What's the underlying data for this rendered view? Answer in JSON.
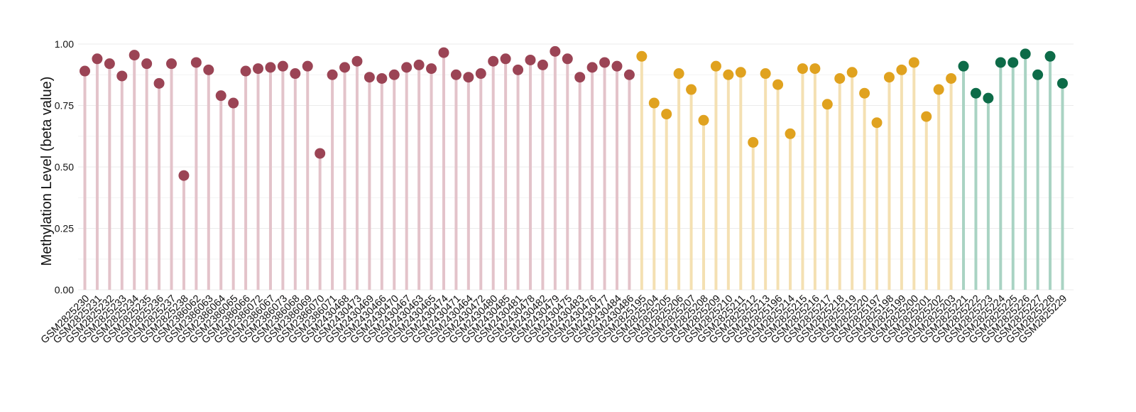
{
  "chart_data": {
    "type": "lollipop",
    "ylabel": "Methylation Level (beta value)",
    "ylim": [
      0,
      1
    ],
    "yticks": [
      "0.00",
      "0.25",
      "0.50",
      "0.75",
      "1.00"
    ],
    "grid": true,
    "legend": "none",
    "groups": [
      {
        "color": "#9b4455",
        "stem_color": "#e3c3ca",
        "start": 0,
        "end": 45
      },
      {
        "color": "#e0a21f",
        "stem_color": "#f4e0b2",
        "start": 45,
        "end": 71
      },
      {
        "color": "#0d6b48",
        "stem_color": "#a9d3c3",
        "start": 71,
        "end": 80
      }
    ],
    "categories": [
      "GSM2825230",
      "GSM2825231",
      "GSM2825232",
      "GSM2825233",
      "GSM2825234",
      "GSM2825235",
      "GSM2825236",
      "GSM2825237",
      "GSM2825238",
      "GSM2386062",
      "GSM2386063",
      "GSM2386064",
      "GSM2386065",
      "GSM2386066",
      "GSM2386072",
      "GSM2386067",
      "GSM2386073",
      "GSM2386068",
      "GSM2386069",
      "GSM2386070",
      "GSM2386071",
      "GSM2430468",
      "GSM2430473",
      "GSM2430469",
      "GSM2430466",
      "GSM2430470",
      "GSM2430467",
      "GSM2430463",
      "GSM2430465",
      "GSM2430474",
      "GSM2430471",
      "GSM2430464",
      "GSM2430472",
      "GSM2430480",
      "GSM2430485",
      "GSM2430481",
      "GSM2430478",
      "GSM2430482",
      "GSM2430479",
      "GSM2430475",
      "GSM2430483",
      "GSM2430476",
      "GSM2430477",
      "GSM2430484",
      "GSM2430486",
      "GSM2825195",
      "GSM2825204",
      "GSM2825205",
      "GSM2825206",
      "GSM2825207",
      "GSM2825208",
      "GSM2825209",
      "GSM2825210",
      "GSM2825211",
      "GSM2825212",
      "GSM2825213",
      "GSM2825196",
      "GSM2825214",
      "GSM2825215",
      "GSM2825216",
      "GSM2825217",
      "GSM2825218",
      "GSM2825219",
      "GSM2825220",
      "GSM2825197",
      "GSM2825198",
      "GSM2825199",
      "GSM2825200",
      "GSM2825201",
      "GSM2825202",
      "GSM2825203",
      "GSM2825221",
      "GSM2825222",
      "GSM2825223",
      "GSM2825224",
      "GSM2825225",
      "GSM2825226",
      "GSM2825227",
      "GSM2825228",
      "GSM2825229"
    ],
    "values": [
      0.89,
      0.94,
      0.92,
      0.87,
      0.955,
      0.92,
      0.84,
      0.92,
      0.465,
      0.925,
      0.895,
      0.79,
      0.76,
      0.89,
      0.9,
      0.905,
      0.91,
      0.88,
      0.91,
      0.555,
      0.875,
      0.905,
      0.93,
      0.865,
      0.86,
      0.875,
      0.905,
      0.915,
      0.9,
      0.965,
      0.875,
      0.865,
      0.88,
      0.93,
      0.94,
      0.895,
      0.935,
      0.915,
      0.97,
      0.94,
      0.865,
      0.905,
      0.925,
      0.91,
      0.875,
      0.95,
      0.76,
      0.715,
      0.88,
      0.815,
      0.69,
      0.91,
      0.875,
      0.885,
      0.6,
      0.88,
      0.835,
      0.635,
      0.9,
      0.9,
      0.755,
      0.86,
      0.885,
      0.8,
      0.68,
      0.865,
      0.895,
      0.925,
      0.705,
      0.815,
      0.86,
      0.91,
      0.8,
      0.78,
      0.925,
      0.925,
      0.96,
      0.875,
      0.95,
      0.84
    ]
  }
}
